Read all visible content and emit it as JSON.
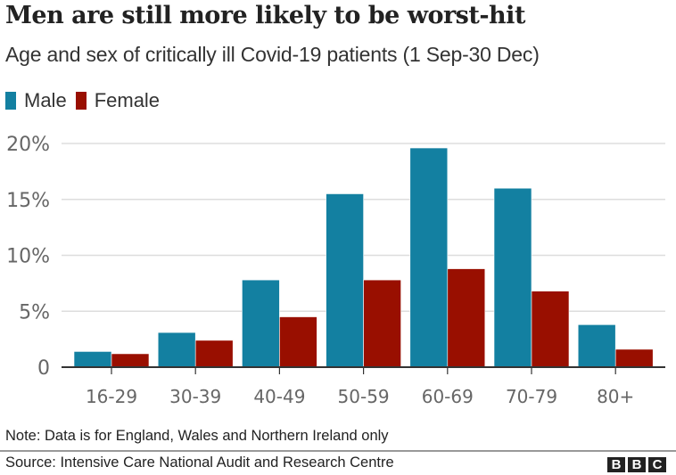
{
  "colors": {
    "male": "#1380a1",
    "female": "#990f00",
    "grid": "#dddddd",
    "axis": "#333333",
    "tick_text": "#666666"
  },
  "legend": [
    {
      "label": "Male",
      "color": "#1380a1"
    },
    {
      "label": "Female",
      "color": "#990f00"
    }
  ],
  "footer": {
    "note": "Note: Data is for England, Wales and Northern Ireland only",
    "source": "Source: Intensive Care National Audit and Research Centre",
    "logo_letters": [
      "B",
      "B",
      "C"
    ]
  },
  "chart_data": {
    "type": "bar",
    "title": "Men are still more likely to be worst-hit",
    "subtitle": "Age and sex of critically ill Covid-19 patients (1 Sep-30 Dec)",
    "xlabel": "",
    "ylabel": "",
    "categories": [
      "16-29",
      "30-39",
      "40-49",
      "50-59",
      "60-69",
      "70-79",
      "80+"
    ],
    "series": [
      {
        "name": "Male",
        "values": [
          1.4,
          3.1,
          7.8,
          15.5,
          19.6,
          16.0,
          3.8
        ]
      },
      {
        "name": "Female",
        "values": [
          1.2,
          2.4,
          4.5,
          7.8,
          8.8,
          6.8,
          1.6
        ]
      }
    ],
    "ylim": [
      0,
      20
    ],
    "yticks": [
      0,
      5,
      10,
      15,
      20
    ],
    "ytick_labels": [
      "0",
      "5%",
      "10%",
      "15%",
      "20%"
    ],
    "grid": true,
    "legend_position": "top-left"
  }
}
